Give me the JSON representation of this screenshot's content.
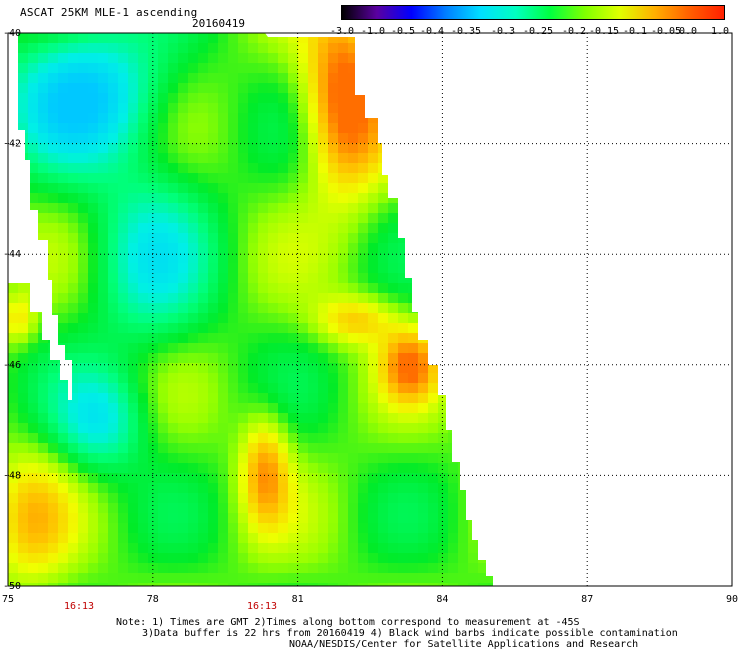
{
  "header": {
    "title": "ASCAT 25KM MLE-1 ascending",
    "date": "20160419"
  },
  "colorbar": {
    "labels": [
      "-3.0",
      "-1.0",
      "-0.5",
      "-0.4",
      "-0.35",
      "-0.3",
      "-0.25",
      "-0.2",
      "-0.15",
      "-0.1",
      "-0.05",
      "0.0",
      "1.0"
    ],
    "colors": [
      "#000000",
      "#5a00a0",
      "#0000ff",
      "#0080ff",
      "#00e0ff",
      "#00ffc0",
      "#00ff40",
      "#80ff00",
      "#e0ff00",
      "#ffb000",
      "#ff6000",
      "#ff2000"
    ]
  },
  "map": {
    "x_ticks": [
      "75",
      "78",
      "81",
      "84",
      "87",
      "90"
    ],
    "y_ticks": [
      "-40",
      "-42",
      "-44",
      "-46",
      "-48",
      "-50"
    ],
    "time_labels": [
      "16:13",
      "16:13"
    ],
    "lon_range": [
      75,
      90
    ],
    "lat_range": [
      -40,
      -50
    ]
  },
  "notes": {
    "line1": "Note: 1) Times are GMT 2)Times along bottom correspond to measurement at -45S",
    "line2": "3)Data buffer is 22 hrs from 20160419 4) Black wind barbs indicate possible contamination",
    "line3": "NOAA/NESDIS/Center for Satellite Applications and Research"
  }
}
